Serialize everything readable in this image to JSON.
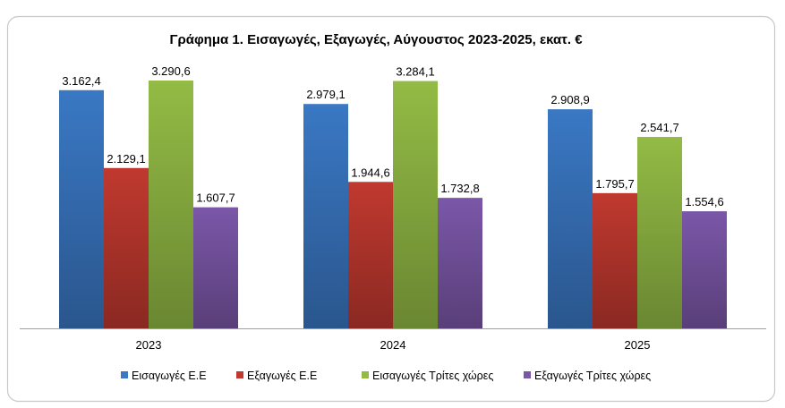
{
  "chart_data": {
    "type": "bar",
    "title": "Γράφημα 1. Εισαγωγές, Εξαγωγές, Αύγουστος 2023-2025, εκατ. €",
    "xlabel": "",
    "ylabel": "",
    "ylim": [
      0,
      3290.6
    ],
    "grid": false,
    "legend_position": "bottom",
    "categories": [
      "2023",
      "2024",
      "2025"
    ],
    "series": [
      {
        "name": "Εισαγωγές Ε.Ε",
        "color": "#3a78c4",
        "values": [
          3162.4,
          2979.1,
          2908.9
        ],
        "labels": [
          "3.162,4",
          "2.979,1",
          "2.908,9"
        ]
      },
      {
        "name": "Εξαγωγές  Ε.Ε",
        "color": "#c0392f",
        "values": [
          2129.1,
          1944.6,
          1795.7
        ],
        "labels": [
          "2.129,1",
          "1.944,6",
          "1.795,7"
        ]
      },
      {
        "name": "Εισαγωγές Τρίτες χώρες",
        "color": "#93bb45",
        "values": [
          3290.6,
          3284.1,
          2541.7
        ],
        "labels": [
          "3.290,6",
          "3.284,1",
          "2.541,7"
        ]
      },
      {
        "name": "Εξαγωγές Τρίτες χώρες",
        "color": "#7b57a8",
        "values": [
          1607.7,
          1732.8,
          1554.6
        ],
        "labels": [
          "1.607,7",
          "1.732,8",
          "1.554,6"
        ]
      }
    ]
  }
}
